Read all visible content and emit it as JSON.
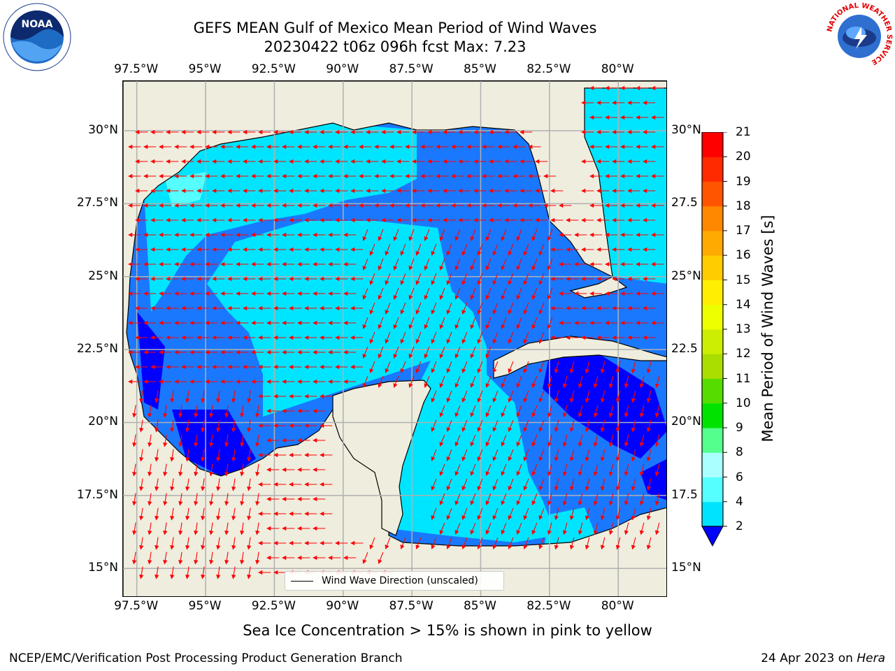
{
  "title": {
    "line1": "GEFS MEAN Gulf of Mexico Mean Period of Wind Waves",
    "line2": "20230422 t06z 096h fcst   Max: 7.23"
  },
  "map": {
    "lon_ticks": [
      "97.5°W",
      "95°W",
      "92.5°W",
      "90°W",
      "87.5°W",
      "85°W",
      "82.5°W",
      "80°W"
    ],
    "lat_ticks_left": [
      "30°N",
      "27.5°N",
      "25°N",
      "22.5°N",
      "20°N",
      "17.5°N",
      "15°N"
    ],
    "lat_ticks_right": [
      "30°N",
      "27.5",
      "25°N",
      "22.5",
      "20°N",
      "17.5",
      "15°N"
    ],
    "lon_range": [
      -98,
      -78.2
    ],
    "lat_range": [
      14,
      31.7
    ],
    "colors": {
      "land": "#efedde",
      "coast": "#000000",
      "grid": "#b0b0b0",
      "arrow": "#ff0000"
    },
    "legend_label": "Wind Wave Direction (unscaled)"
  },
  "colorbar": {
    "label": "Mean Period of Wind Waves [s]",
    "ticks": [
      "2",
      "4",
      "6",
      "8",
      "9",
      "10",
      "11",
      "12",
      "13",
      "14",
      "15",
      "16",
      "17",
      "18",
      "19",
      "20",
      "21"
    ],
    "colors": [
      "#0071ff",
      "#00e3ff",
      "#55ffff",
      "#aaffff",
      "#55ff8d",
      "#00e300",
      "#55dd00",
      "#aadd00",
      "#ccee00",
      "#eeff00",
      "#ffee00",
      "#ffcc00",
      "#ffaa00",
      "#ff8800",
      "#ff5500",
      "#ff2a00",
      "#ff0000"
    ],
    "under_color": "#0000ff"
  },
  "sea_ice_note": "Sea Ice Concentration > 15% is shown in pink to yellow",
  "footer": {
    "left": "NCEP/EMC/Verification Post Processing Product Generation Branch",
    "right_date": "24 Apr 2023 on ",
    "right_machine": "Hera"
  },
  "logos": {
    "noaa_text": "NOAA",
    "nws_text": "NATIONAL WEATHER SERVICE"
  }
}
